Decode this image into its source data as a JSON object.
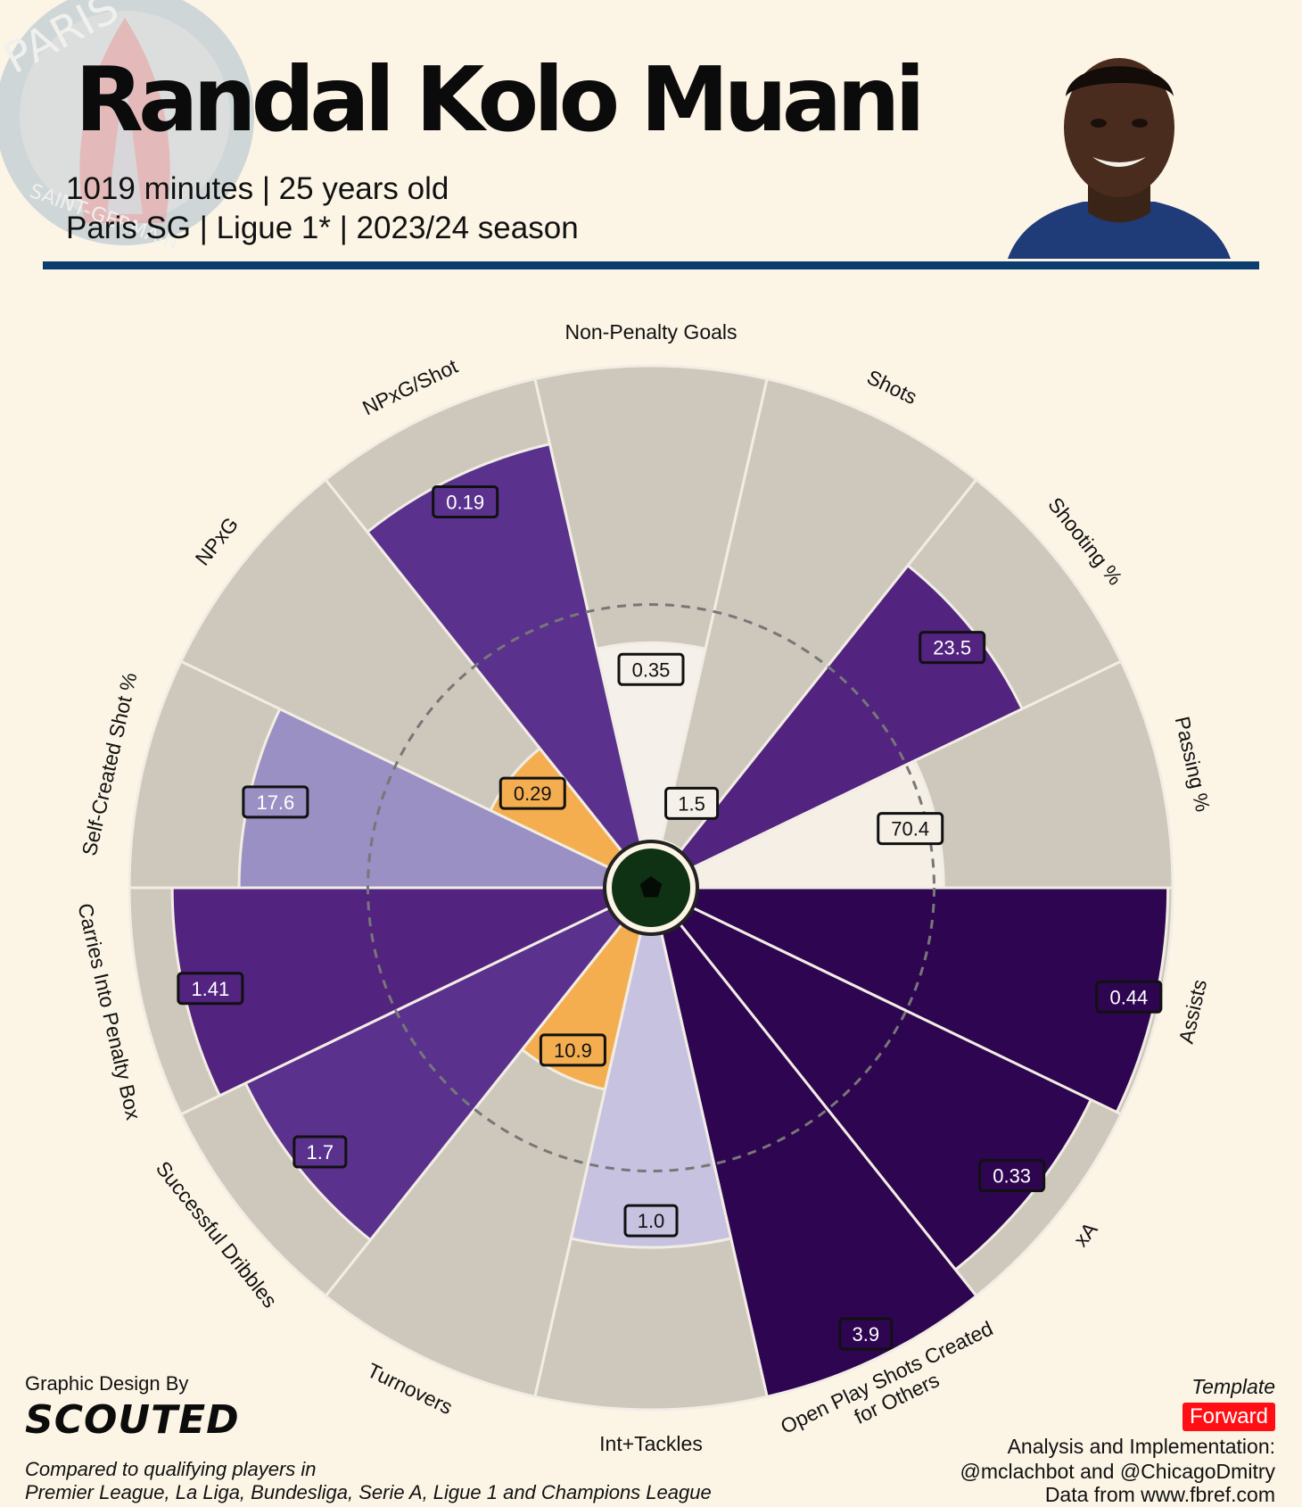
{
  "header": {
    "title": "Randal Kolo Muani",
    "line1": "1019 minutes | 25 years old",
    "line2": "Paris SG | Ligue 1* | 2023/24 season",
    "crest_text": "PARIS SAINT-GERMAIN"
  },
  "chart_data": {
    "type": "pizza",
    "metrics": [
      {
        "name": "Non-Penalty Goals",
        "value": "0.35",
        "percentile": 42,
        "group": "attacking"
      },
      {
        "name": "Shots",
        "value": "1.5",
        "percentile": 0,
        "group": "attacking"
      },
      {
        "name": "Shooting %",
        "value": "23.5",
        "percentile": 77,
        "group": "attacking"
      },
      {
        "name": "Passing %",
        "value": "70.4",
        "percentile": 52,
        "group": "passing"
      },
      {
        "name": "Assists",
        "value": "0.44",
        "percentile": 99,
        "group": "creation"
      },
      {
        "name": "xA",
        "value": "0.33",
        "percentile": 93,
        "group": "creation"
      },
      {
        "name": "Open Play Shots Created\nfor Others",
        "value": "3.9",
        "percentile": 100,
        "group": "creation"
      },
      {
        "name": "Int+Tackles",
        "value": "1.0",
        "percentile": 66,
        "group": "defending"
      },
      {
        "name": "Turnovers",
        "value": "10.9",
        "percentile": 34,
        "group": "ball"
      },
      {
        "name": "Successful Dribbles",
        "value": "1.7",
        "percentile": 85,
        "group": "ball"
      },
      {
        "name": "Carries Into Penalty Box",
        "value": "1.41",
        "percentile": 91,
        "group": "ball"
      },
      {
        "name": "Self-Created Shot %",
        "value": "17.6",
        "percentile": 77,
        "group": "shooting"
      },
      {
        "name": "NPxG",
        "value": "0.29",
        "percentile": 28,
        "group": "shooting"
      },
      {
        "name": "NPxG/Shot",
        "value": "0.19",
        "percentile": 86,
        "group": "shooting"
      }
    ],
    "percentile_range": [
      0,
      100
    ],
    "reference_ring": 50
  },
  "footer": {
    "design_label": "Graphic Design By",
    "brand": "SCOUTED",
    "compare_line1": "Compared to qualifying players in",
    "compare_line2": "Premier League, La Liga, Bundesliga, Serie A, Ligue 1 and Champions League",
    "template_label": "Template",
    "template_value": "Forward",
    "credit1": "Analysis and Implementation:",
    "credit2": "@mclachbot and @ChicagoDmitry",
    "credit3": "Data from www.fbref.com"
  },
  "colors": {
    "background": "#fcf5e6",
    "track": "#cdc7bc",
    "rule": "#0b3d6e",
    "badge": "#ff0f14"
  }
}
